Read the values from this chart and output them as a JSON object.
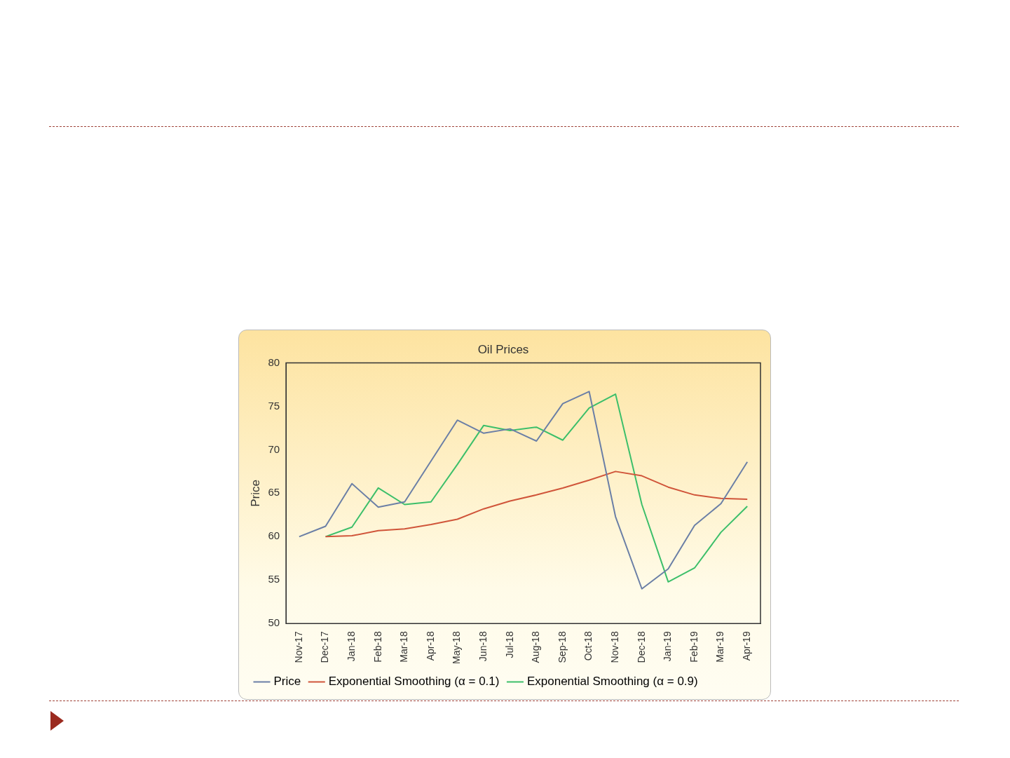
{
  "chart_data": {
    "type": "line",
    "title": "Oil Prices",
    "ylabel": "Price",
    "categories": [
      "Nov-17",
      "Dec-17",
      "Jan-18",
      "Feb-18",
      "Mar-18",
      "Apr-18",
      "May-18",
      "Jun-18",
      "Jul-18",
      "Aug-18",
      "Sep-18",
      "Oct-18",
      "Nov-18",
      "Dec-18",
      "Jan-19",
      "Feb-19",
      "Mar-19",
      "Apr-19"
    ],
    "series": [
      {
        "name": "Price",
        "color": "#6b7fa6",
        "values": [
          60,
          61.2,
          66.1,
          63.4,
          64.0,
          68.7,
          73.4,
          71.9,
          72.4,
          71.0,
          75.3,
          76.7,
          62.3,
          54.0,
          56.3,
          61.3,
          63.8,
          68.6
        ]
      },
      {
        "name": "Exponential Smoothing (α = 0.1)",
        "color": "#d0553a",
        "values": [
          null,
          60,
          60.1,
          60.7,
          60.9,
          61.4,
          62.0,
          63.2,
          64.1,
          64.8,
          65.6,
          66.5,
          67.5,
          67.0,
          65.7,
          64.8,
          64.4,
          64.3
        ]
      },
      {
        "name": "Exponential Smoothing (α = 0.9)",
        "color": "#3cbf6a",
        "values": [
          null,
          60,
          61.1,
          65.6,
          63.7,
          64.0,
          68.3,
          72.8,
          72.2,
          72.6,
          71.1,
          74.8,
          76.4,
          63.7,
          54.8,
          56.4,
          60.5,
          63.5
        ]
      }
    ],
    "ylim": [
      50,
      80
    ],
    "yticks": [
      50,
      55,
      60,
      65,
      70,
      75,
      80
    ],
    "grid": false,
    "legend": "bottom",
    "marker": "none",
    "line_style": "solid"
  }
}
